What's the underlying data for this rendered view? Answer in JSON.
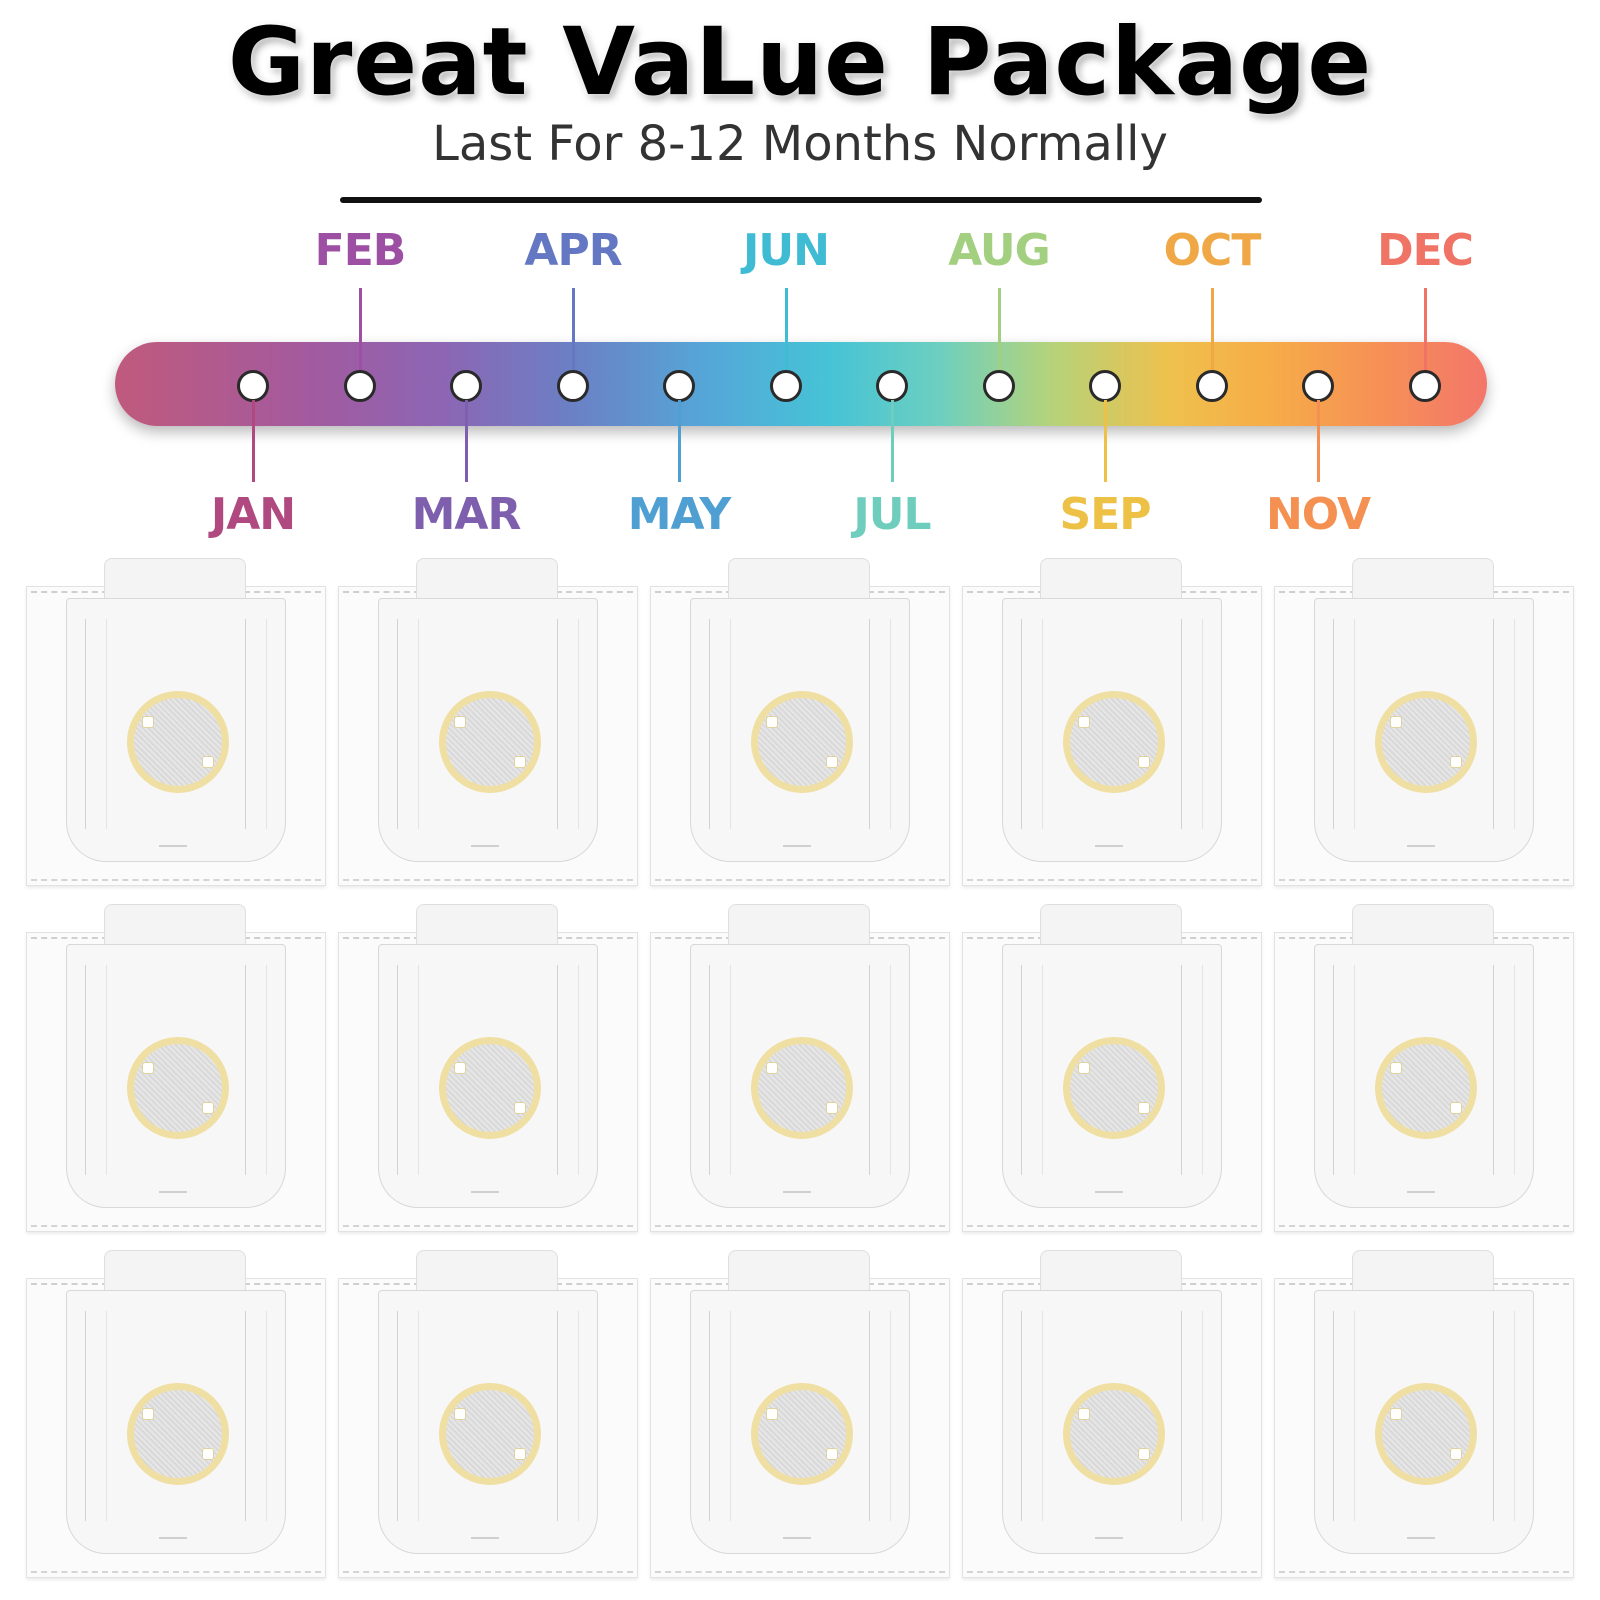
{
  "header": {
    "title": "Great VaLue Package",
    "subtitle": "Last For 8-12 Months Normally"
  },
  "timeline": {
    "months": [
      {
        "label": "JAN",
        "color": "#b0497f",
        "side": "below"
      },
      {
        "label": "FEB",
        "color": "#9c4fa3",
        "side": "above"
      },
      {
        "label": "MAR",
        "color": "#7e5fae",
        "side": "below"
      },
      {
        "label": "APR",
        "color": "#6477c3",
        "side": "above"
      },
      {
        "label": "MAY",
        "color": "#4f9fd2",
        "side": "below"
      },
      {
        "label": "JUN",
        "color": "#3fbcd3",
        "side": "above"
      },
      {
        "label": "JUL",
        "color": "#6fcdbd",
        "side": "below"
      },
      {
        "label": "AUG",
        "color": "#a3cf80",
        "side": "above"
      },
      {
        "label": "SEP",
        "color": "#edc146",
        "side": "below"
      },
      {
        "label": "OCT",
        "color": "#f0a847",
        "side": "above"
      },
      {
        "label": "NOV",
        "color": "#f49052",
        "side": "below"
      },
      {
        "label": "DEC",
        "color": "#ef7466",
        "side": "above"
      }
    ]
  },
  "product": {
    "bag_count": 15
  }
}
